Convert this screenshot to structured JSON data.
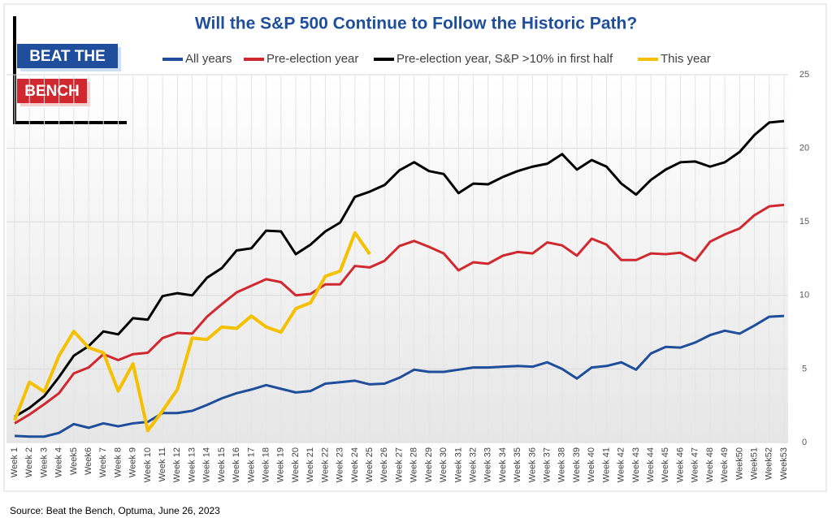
{
  "chart_data": {
    "type": "line",
    "title": "Will the S&P 500 Continue to Follow the Historic Path?",
    "logo": [
      "BEAT THE",
      "BENCH"
    ],
    "source": "Source: Beat the Bench, Optuma, June 26, 2023",
    "categories": [
      "Week 1",
      "Week 2",
      "Week 3",
      "Week 4",
      "Week5",
      "Week6",
      "Week 7",
      "Week 8",
      "Week 9",
      "Week 10",
      "Week 11",
      "Week 12",
      "Week 13",
      "Week 14",
      "Week 15",
      "Week 16",
      "Week 17",
      "Week 18",
      "Week 19",
      "Week 20",
      "Week 21",
      "Week 22",
      "Week 23",
      "Week 24",
      "Week 25",
      "Week 26",
      "Week 27",
      "Week 28",
      "Week 29",
      "Week 30",
      "Week 31",
      "Week 32",
      "Week 33",
      "Week 34",
      "Week 35",
      "Week 36",
      "Week 37",
      "Week 38",
      "Week 39",
      "Week 40",
      "Week 41",
      "Week 42",
      "Week 43",
      "Week 44",
      "Week 45",
      "Week 46",
      "Week 47",
      "Week 48",
      "Week 49",
      "Week50",
      "Week51",
      "Week52",
      "Week53"
    ],
    "series": [
      {
        "name": "All years",
        "color": "#1f4e9c",
        "values": [
          0.45,
          0.4,
          0.4,
          0.65,
          1.25,
          1.0,
          1.3,
          1.1,
          1.3,
          1.4,
          2.0,
          2.0,
          2.15,
          2.55,
          3.0,
          3.35,
          3.6,
          3.9,
          3.65,
          3.4,
          3.5,
          4.0,
          4.1,
          4.2,
          3.95,
          4.0,
          4.4,
          4.95,
          4.8,
          4.8,
          4.95,
          5.1,
          5.1,
          5.15,
          5.2,
          5.15,
          5.45,
          5.0,
          4.35,
          5.1,
          5.2,
          5.45,
          4.95,
          6.05,
          6.5,
          6.45,
          6.8,
          7.3,
          7.6,
          7.4,
          7.95,
          8.55,
          8.6
        ]
      },
      {
        "name": "Pre-election year",
        "color": "#d0282e",
        "values": [
          1.3,
          1.9,
          2.6,
          3.35,
          4.7,
          5.1,
          6.0,
          5.6,
          6.0,
          6.1,
          7.1,
          7.45,
          7.4,
          8.55,
          9.4,
          10.2,
          10.65,
          11.1,
          10.9,
          10.0,
          10.1,
          10.75,
          10.75,
          12.0,
          11.9,
          12.35,
          13.35,
          13.7,
          13.3,
          12.85,
          11.7,
          12.25,
          12.15,
          12.7,
          12.95,
          12.85,
          13.6,
          13.4,
          12.7,
          13.85,
          13.45,
          12.4,
          12.4,
          12.85,
          12.8,
          12.9,
          12.35,
          13.65,
          14.15,
          14.55,
          15.45,
          16.05,
          16.15
        ]
      },
      {
        "name": "Pre-election year, S&P >10% in first half",
        "color": "#000000",
        "values": [
          1.75,
          2.35,
          3.15,
          4.45,
          5.9,
          6.55,
          7.55,
          7.35,
          8.45,
          8.35,
          9.95,
          10.15,
          10.0,
          11.2,
          11.85,
          13.05,
          13.2,
          14.4,
          14.35,
          12.8,
          13.45,
          14.35,
          14.95,
          16.7,
          17.05,
          17.5,
          18.5,
          19.05,
          18.45,
          18.25,
          16.95,
          17.6,
          17.55,
          18.05,
          18.45,
          18.75,
          18.95,
          19.6,
          18.55,
          19.2,
          18.75,
          17.6,
          16.85,
          17.85,
          18.55,
          19.05,
          19.1,
          18.75,
          19.05,
          19.75,
          20.9,
          21.75,
          21.85
        ]
      },
      {
        "name": "This year",
        "color": "#f5c000",
        "values": [
          1.5,
          4.1,
          3.45,
          5.9,
          7.55,
          6.45,
          6.1,
          3.5,
          5.35,
          0.8,
          2.15,
          3.6,
          7.1,
          7.0,
          7.85,
          7.75,
          8.6,
          7.85,
          7.5,
          9.1,
          9.5,
          11.3,
          11.65,
          14.25,
          12.8,
          null,
          null,
          null,
          null,
          null,
          null,
          null,
          null,
          null,
          null,
          null,
          null,
          null,
          null,
          null,
          null,
          null,
          null,
          null,
          null,
          null,
          null,
          null,
          null,
          null,
          null,
          null,
          null
        ]
      }
    ],
    "ylim": [
      0,
      25
    ],
    "yticks": [
      0,
      5,
      10,
      15,
      20,
      25
    ],
    "grid": true
  }
}
